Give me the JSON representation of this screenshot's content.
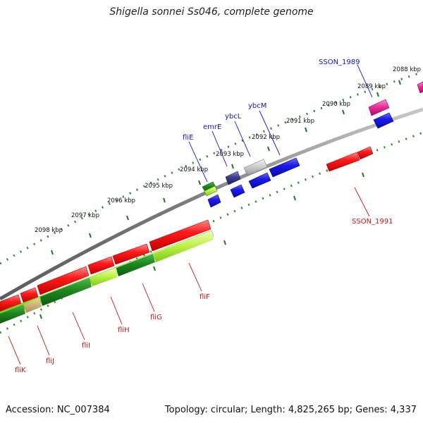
{
  "title": "Shigella sonnei Ss046, complete genome",
  "footer": {
    "accession": "Accession: NC_007384",
    "summary": "Topology: circular; Length: 4,825,265 bp; Genes: 4,337"
  },
  "scale": {
    "ticks": [
      "2088 kbp",
      "2089 kbp",
      "2090 kbp",
      "2091 kbp",
      "2092 kbp",
      "2093 kbp",
      "2094 kbp",
      "2095 kbp",
      "2096 kbp",
      "2097 kbp",
      "2098 kbp"
    ]
  },
  "genes": {
    "forward": [
      "SSON_1989",
      "ybcM",
      "ybcL",
      "emrE",
      "fliE"
    ],
    "reverse": [
      "SSON_1991",
      "fliF",
      "fliG",
      "fliH",
      "fliI",
      "fliJ",
      "fliK"
    ]
  },
  "colors": {
    "forward_label": "#1111cc",
    "reverse_label": "#cc1111",
    "backbone": "#8a8a8a",
    "tick_green": "#2e8b2e",
    "gene_red": "#ee1111",
    "gene_blue": "#1414e6",
    "gene_green": "#2a9a2a",
    "gene_pink": "#ee2f9a",
    "gene_navy": "#3c3c8c",
    "gene_gray": "#c2c2c2"
  }
}
